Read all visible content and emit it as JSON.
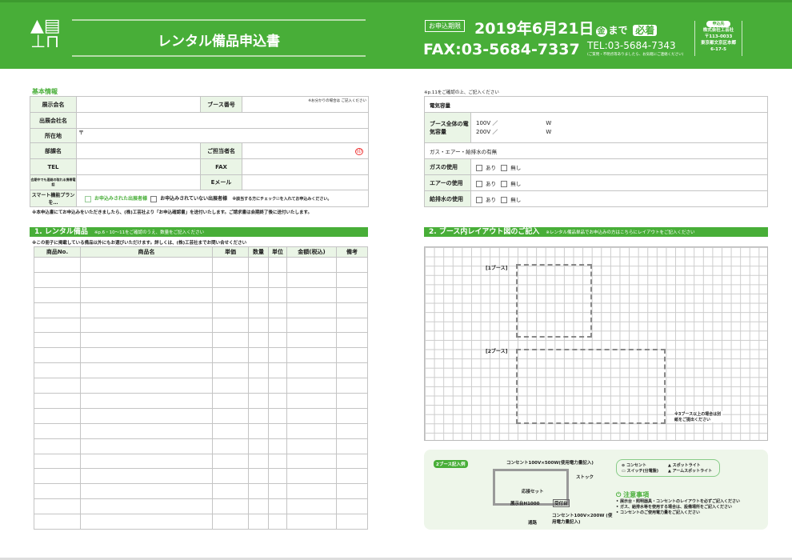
{
  "header": {
    "title": "レンタル備品申込書",
    "deadline_label": "お申込期限",
    "deadline": "2019年6月21日",
    "weekday": "金",
    "deadline_suffix": "まで",
    "must": "必着",
    "fax": "FAX:03-5684-7337",
    "tel": "TEL:03-5684-7343",
    "tel_note": "(ご質問・不明点等ありましたら、お気軽にご連絡ください)",
    "dest_label": "申込先",
    "company": "株式会社工芸社",
    "postal": "〒113-0033",
    "address": "東京都文京区本郷",
    "address2": "6-17-5"
  },
  "basic": {
    "title": "基本情報",
    "rows": {
      "exhibition": "展示会名",
      "booth_no": "ブース番号",
      "booth_note": "※お分かりの場合は ご記入ください",
      "company": "出展会社名",
      "address": "所在地",
      "postal_mark": "〒",
      "dept": "部課名",
      "person": "ご担当者名",
      "seal": "印",
      "tel": "TEL",
      "fax": "FAX",
      "contact": "会期中でも連絡の取れる携帯電話",
      "email": "Eメール",
      "smart": "スマート機能プランを…",
      "opt_applied": "お申込みされた出展者様",
      "opt_not": "お申込みされていない出展者様",
      "check_note": "※該当する方にチェック☑を入れてお申込みください。"
    },
    "footnote": "※本申込書にてお申込みをいただきましたら、(株)工芸社より「お申込確認書」を送付いたします。ご請求書は会期終了後に送付いたします。"
  },
  "rental": {
    "title": "1. レンタル備品",
    "subtitle": "※p.6・10〜11をご確認のうえ、数量をご記入ください",
    "note": "※この冊子に掲載している備品以外にもお選びいただけます。詳しくは、(株)工芸社までお問い合せください",
    "columns": [
      "商品No.",
      "商品名",
      "単価",
      "数量",
      "単位",
      "金額(税込)",
      "備考"
    ]
  },
  "utility": {
    "note": "※p.11をご確認の上、ご記入ください",
    "power": "電気容量",
    "booth_power": "ブース全体の電気容量",
    "v100": "100V ／",
    "v200": "200V ／",
    "w": "W",
    "gas_header": "ガス・エアー・給排水の有無",
    "gas": "ガスの使用",
    "air": "エアーの使用",
    "water": "給排水の使用",
    "yes": "あり",
    "no": "無し"
  },
  "layout": {
    "title": "2. ブース内レイアウト図のご記入",
    "subtitle": "※レンタル備品単品でお申込みの方はこちらにレイアウトをご記入ください",
    "booth1": "[1ブース]",
    "booth2": "[2ブース]",
    "note3": "※3ブース以上の場合は別紙をご提出ください"
  },
  "example": {
    "badge": "2ブース記入例",
    "outlet500": "コンセント100V×500W(使用電力量記入)",
    "stock": "ストック",
    "reception_set": "応接セット",
    "display": "展示台H1000",
    "reception": "受付台",
    "outlet200": "コンセント100V×200W (使用電力量記入)",
    "aisle": "通路",
    "legend": [
      "コンセント",
      "スイッチ(分電盤)",
      "スポットライト",
      "アームスポットライト"
    ],
    "caution_title": "注意事項",
    "cautions": [
      "展示台・照明器具・コンセントのレイアウトを必ずご記入ください",
      "ガス、給排水等を使用する場合は、設備場所をご記入ください",
      "コンセントのご使用電力量をご記入ください"
    ]
  },
  "colors": {
    "brand": "#48ae38",
    "label_bg": "#eaf5e6"
  }
}
